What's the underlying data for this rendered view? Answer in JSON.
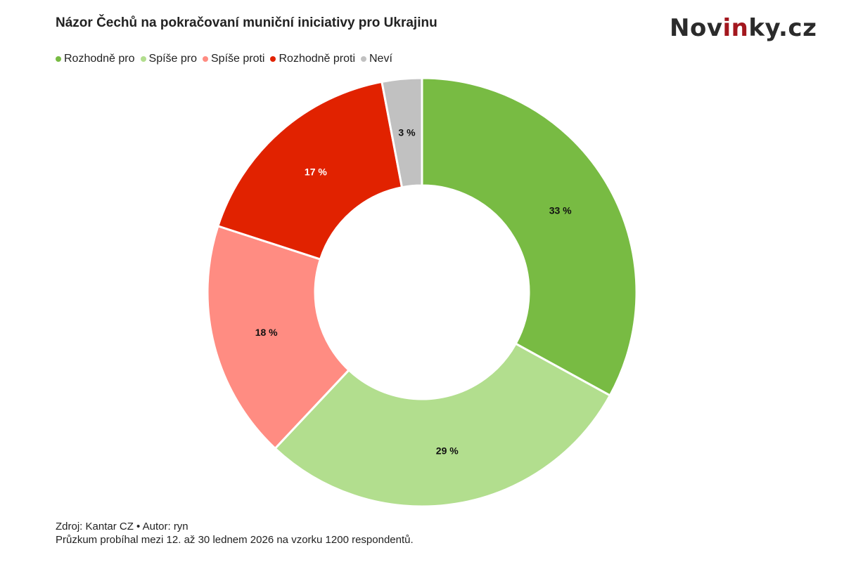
{
  "logo": {
    "prefix": "Nov",
    "highlight": "in",
    "suffix": "ky.cz"
  },
  "chart_data": {
    "type": "pie",
    "donut": true,
    "title": "Názor Čechů na pokračovaní muniční iniciativy pro Ukrajinu",
    "legend_position": "top-left",
    "categories": [
      "Rozhodně pro",
      "Spíše pro",
      "Spíše proti",
      "Rozhodně proti",
      "Neví"
    ],
    "values": [
      33,
      29,
      18,
      17,
      3
    ],
    "labels": [
      "33 %",
      "29 %",
      "18 %",
      "17 %",
      "3 %"
    ],
    "colors": [
      "#78bb43",
      "#b2de8e",
      "#ff8c82",
      "#e12200",
      "#c1c1c1"
    ],
    "label_colors": [
      "#111111",
      "#111111",
      "#111111",
      "#ffffff",
      "#111111"
    ]
  },
  "footer": {
    "source": "Zdroj: Kantar CZ • Autor: ryn",
    "note": "Průzkum probíhal mezi 12. až 30 lednem 2026 na vzorku 1200 respondentů."
  }
}
